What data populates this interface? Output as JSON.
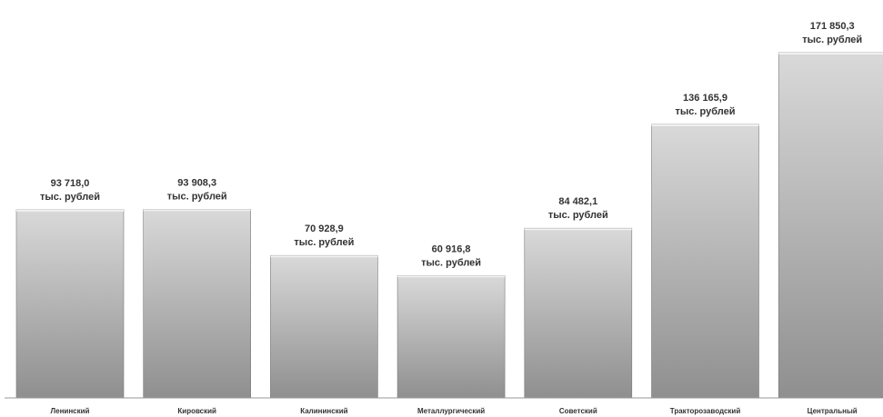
{
  "chart_data": {
    "type": "bar",
    "title": "",
    "xlabel": "",
    "ylabel": "",
    "categories": [
      "Ленинский",
      "Кировский",
      "Калининский",
      "Металлургический",
      "Советский",
      "Тракторозаводский",
      "Центральный"
    ],
    "values": [
      93718.0,
      93908.3,
      70928.9,
      60916.8,
      84482.1,
      136165.9,
      171850.3
    ],
    "value_labels": [
      "93 718,0",
      "93 908,3",
      "70 928,9",
      "60 916,8",
      "84 482,1",
      "136 165,9",
      "171 850,3"
    ],
    "unit_label": "тыс. рублей",
    "ylim": [
      0,
      171850.3
    ],
    "grid": false,
    "legend": "none",
    "colors": {
      "bar_top": "#d9d9d9",
      "bar_bottom": "#8f8f8f",
      "bar_edge": "#7a7a7a",
      "axis": "#9a9a9a",
      "text": "#333333"
    }
  }
}
